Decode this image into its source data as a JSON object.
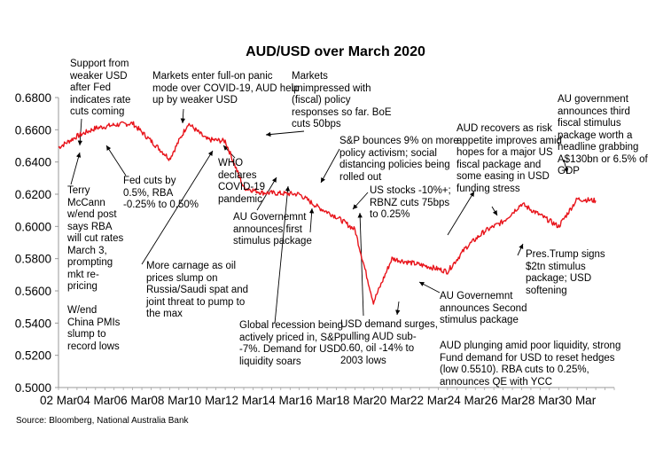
{
  "chart_data": {
    "type": "line",
    "title": "AUD/USD over March 2020",
    "source": "Source: Bloomberg, National Australia Bank",
    "xlabel": "",
    "ylabel": "",
    "ylim": [
      0.5,
      0.68
    ],
    "y_ticks": [
      "0.5000",
      "0.5200",
      "0.5400",
      "0.5600",
      "0.5800",
      "0.6000",
      "0.6200",
      "0.6400",
      "0.6600",
      "0.6800"
    ],
    "x_ticks": [
      "02 Mar",
      "04 Mar",
      "06 Mar",
      "08 Mar",
      "10 Mar",
      "12 Mar",
      "14 Mar",
      "16 Mar",
      "18 Mar",
      "20 Mar",
      "22 Mar",
      "24 Mar",
      "26 Mar",
      "28 Mar",
      "30 Mar"
    ],
    "grid": false,
    "series_color": "#e8141b",
    "series": [
      {
        "x": [
          "02 Mar",
          "03 Mar",
          "04 Mar",
          "05 Mar",
          "06 Mar",
          "08 Mar",
          "09 Mar",
          "10 Mar",
          "11 Mar",
          "12 Mar",
          "13 Mar",
          "15 Mar",
          "16 Mar",
          "17 Mar",
          "18 Mar",
          "19 Mar",
          "20 Mar",
          "22 Mar",
          "23 Mar",
          "24 Mar",
          "25 Mar",
          "26 Mar",
          "27 Mar",
          "29 Mar",
          "30 Mar",
          "31 Mar"
        ],
        "values": [
          0.649,
          0.656,
          0.661,
          0.663,
          0.664,
          0.642,
          0.664,
          0.654,
          0.653,
          0.624,
          0.621,
          0.62,
          0.612,
          0.606,
          0.598,
          0.553,
          0.58,
          0.575,
          0.572,
          0.587,
          0.597,
          0.603,
          0.614,
          0.6,
          0.617,
          0.616
        ]
      }
    ]
  },
  "annotations": [
    {
      "id": "support",
      "text": "Support from\nweaker USD\nafter Fed\nindicates rate\ncuts coming"
    },
    {
      "id": "markets-panic",
      "text": "Markets enter full-on panic\nmode over COVID-19,  AUD help\nup by weaker USD"
    },
    {
      "id": "markets-unimpressed",
      "text": "Markets\nunimpressed with\n(fiscal) policy\nresponses so far. BoE\ncuts 50bps"
    },
    {
      "id": "au-third",
      "text": "AU government\nannounces third\nfiscal stimulus\npackage worth a\nheadline grabbing\nA$130bn or 6.5% of\nGDP"
    },
    {
      "id": "aud-recovers",
      "text": "AUD recovers as risk\nappetite improves amid\nhopes for a major US\nfiscal package and\nsome easing in USD\nfunding stress"
    },
    {
      "id": "sp-bounces",
      "text": "S&P bounces 9% on  more\npolicy activism;  social\ndistancing policies being\nrolled out"
    },
    {
      "id": "who",
      "text": "WHO\ndeclares\nCOVID-19\npandemic"
    },
    {
      "id": "fed-cuts",
      "text": "Fed cuts by\n0.5%, RBA\n-0.25% to 0.50%"
    },
    {
      "id": "terry",
      "text": "Terry\nMcCann\nw/end post\nsays RBA\nwill cut rates\nMarch 3,\nprompting\nmkt re-\npricing\n\nW/end\nChina PMIs\nslump to\nrecord lows"
    },
    {
      "id": "us-stocks",
      "text": "US stocks -10%+;\nRBNZ cuts 75bps\nto 0.25%"
    },
    {
      "id": "au-first",
      "text": "AU Governemnt\nannounces first\n stimulus package"
    },
    {
      "id": "carnage",
      "text": "More carnage as oil\nprices slump on\nRussia/Saudi spat and\njoint threat to pump to\nthe max"
    },
    {
      "id": "trump",
      "text": "Pres.Trump signs\n$2tn stimulus\npackage; USD\nsoftening"
    },
    {
      "id": "au-second",
      "text": "AU Governemnt\nannounces Second\n stimulus package"
    },
    {
      "id": "global-recession",
      "text": "Global recession being\nactively priced in, S&P\n-7%. Demand for USD\nliquidity soars"
    },
    {
      "id": "usd-demand",
      "text": "USD demand surges,\npulling AUD sub-\n0.60, oil -14% to\n2003 lows"
    },
    {
      "id": "aud-plunging",
      "text": "AUD plunging amid poor liquidity, strong\nFund demand for USD to reset hedges\n(low 0.5510). RBA cuts  to 0.25%,\nannounces QE with  YCC"
    }
  ]
}
